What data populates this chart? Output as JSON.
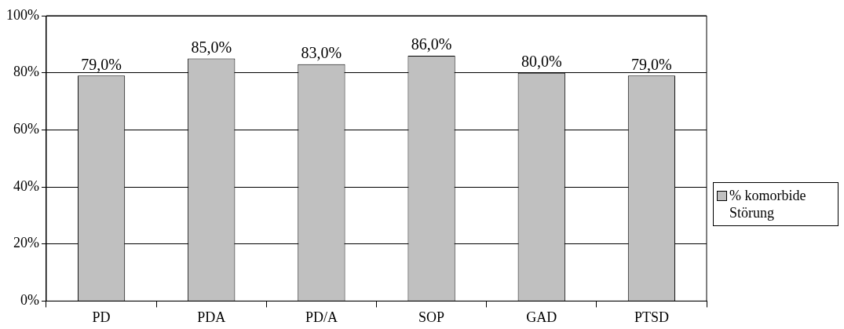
{
  "chart_data": {
    "type": "bar",
    "categories": [
      "PD",
      "PDA",
      "PD/A",
      "SOP",
      "GAD",
      "PTSD"
    ],
    "series": [
      {
        "name": "% komorbide Störung",
        "color": "#c0c0c0",
        "values": [
          79,
          85,
          83,
          86,
          80,
          79
        ],
        "value_labels": [
          "79,0%",
          "85,0%",
          "83,0%",
          "86,0%",
          "80,0%",
          "79,0%"
        ]
      }
    ],
    "ylim": [
      0,
      100
    ],
    "yticks": [
      {
        "value": 0,
        "label": "0%"
      },
      {
        "value": 20,
        "label": "20%"
      },
      {
        "value": 40,
        "label": "40%"
      },
      {
        "value": 60,
        "label": "60%"
      },
      {
        "value": 80,
        "label": "80%"
      },
      {
        "value": 100,
        "label": "100%"
      }
    ],
    "grid": "y",
    "legend": "right"
  }
}
